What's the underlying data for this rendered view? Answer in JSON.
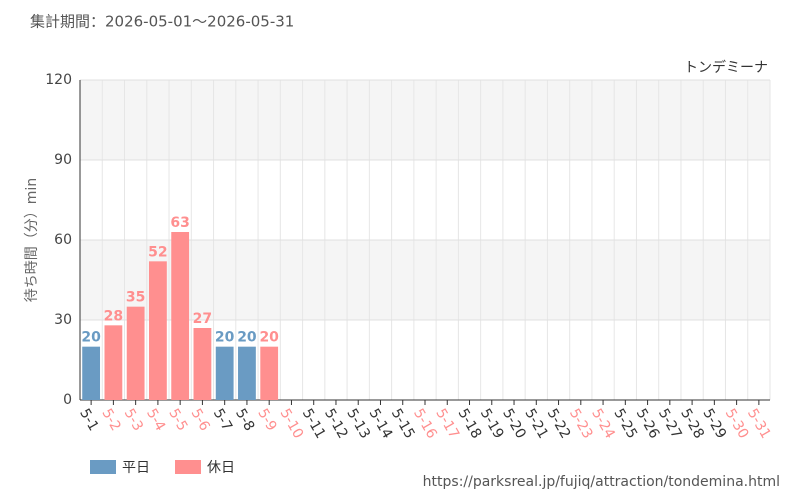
{
  "chart_data": {
    "type": "bar",
    "title": "集計期間：2026-05-01～2026-05-31",
    "subtitle": "トンデミーナ",
    "y_label": "待ち時間（分）min",
    "source": "https://parksreal.jp/fujiq/attraction/tondemina.html",
    "categories": [
      "5-1",
      "5-2",
      "5-3",
      "5-4",
      "5-5",
      "5-6",
      "5-7",
      "5-8",
      "5-9",
      "5-10",
      "5-11",
      "5-12",
      "5-13",
      "5-14",
      "5-15",
      "5-16",
      "5-17",
      "5-18",
      "5-19",
      "5-20",
      "5-21",
      "5-22",
      "5-23",
      "5-24",
      "5-25",
      "5-26",
      "5-27",
      "5-28",
      "5-29",
      "5-30",
      "5-31"
    ],
    "category_colors": [
      "#333333",
      "#ff8f8f",
      "#ff8f8f",
      "#ff8f8f",
      "#ff8f8f",
      "#ff8f8f",
      "#333333",
      "#333333",
      "#ff8f8f",
      "#ff8f8f",
      "#333333",
      "#333333",
      "#333333",
      "#333333",
      "#333333",
      "#ff8f8f",
      "#ff8f8f",
      "#333333",
      "#333333",
      "#333333",
      "#333333",
      "#333333",
      "#ff8f8f",
      "#ff8f8f",
      "#333333",
      "#333333",
      "#333333",
      "#333333",
      "#333333",
      "#ff8f8f",
      "#ff8f8f"
    ],
    "series": [
      {
        "name": "平日",
        "color": "#6a9bc3",
        "values": [
          20,
          null,
          null,
          null,
          null,
          null,
          20,
          20,
          null,
          null,
          null,
          null,
          null,
          null,
          null,
          null,
          null,
          null,
          null,
          null,
          null,
          null,
          null,
          null,
          null,
          null,
          null,
          null,
          null,
          null,
          null
        ]
      },
      {
        "name": "休日",
        "color": "#ff8f8f",
        "values": [
          null,
          28,
          35,
          52,
          63,
          27,
          null,
          null,
          20,
          null,
          null,
          null,
          null,
          null,
          null,
          null,
          null,
          null,
          null,
          null,
          null,
          null,
          null,
          null,
          null,
          null,
          null,
          null,
          null,
          null,
          null
        ]
      }
    ],
    "ylim": [
      0,
      120
    ],
    "yticks": [
      0,
      30,
      60,
      90,
      120
    ],
    "grid": true
  }
}
